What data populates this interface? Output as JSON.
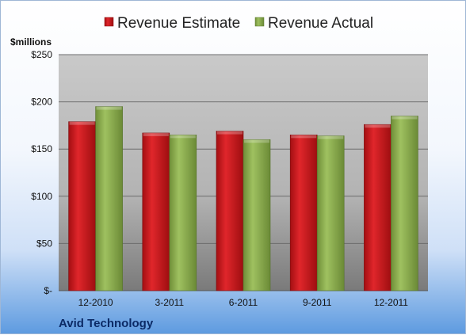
{
  "chart_data": {
    "type": "bar",
    "title": "",
    "unit_label": "$millions",
    "company": "Avid Technology",
    "categories": [
      "12-2010",
      "3-2011",
      "6-2011",
      "9-2011",
      "12-2011"
    ],
    "series": [
      {
        "name": "Revenue Estimate",
        "color": "#c8161b",
        "values": [
          179,
          167,
          169,
          165,
          176
        ]
      },
      {
        "name": "Revenue Actual",
        "color": "#8fb052",
        "values": [
          195,
          165,
          160,
          164,
          185
        ]
      }
    ],
    "ylim": [
      0,
      250
    ],
    "yticks": [
      0,
      50,
      100,
      150,
      200,
      250
    ],
    "ytick_labels": [
      "$-",
      "$50",
      "$100",
      "$150",
      "$200",
      "$250"
    ],
    "grid": true,
    "legend_position": "top"
  }
}
